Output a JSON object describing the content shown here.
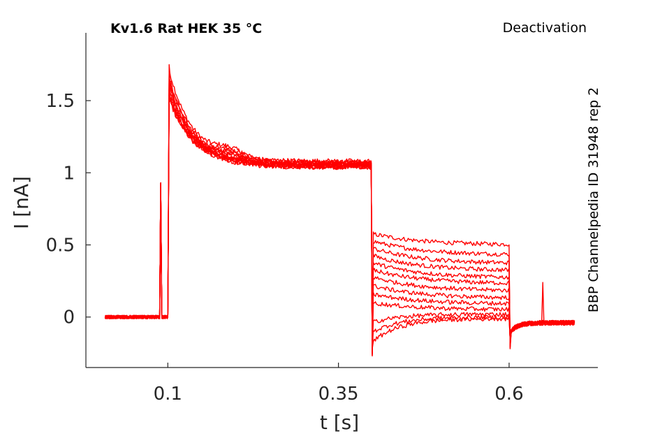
{
  "chart_data": {
    "type": "line",
    "title": "Kv1.6  Rat  HEK  35 °C",
    "protocol_label": "Deactivation",
    "side_label": "BBP Channelpedia ID 31948 rep 2",
    "xlabel": "t [s]",
    "ylabel": "I [nA]",
    "xlim": [
      -0.02,
      0.73
    ],
    "ylim": [
      -0.35,
      1.97
    ],
    "x_ticks": [
      0.1,
      0.35,
      0.6
    ],
    "x_tick_labels": [
      "0.1",
      "0.35",
      "0.6"
    ],
    "y_ticks": [
      0,
      0.5,
      1,
      1.5
    ],
    "y_tick_labels": [
      "0",
      "0.5",
      "1",
      "1.5"
    ],
    "grid": false,
    "series_color": "#ff0000",
    "artifact_spikes": [
      {
        "t": 0.089,
        "i": 0.93
      },
      {
        "t": 0.65,
        "i": 0.24
      }
    ],
    "protocol": {
      "t_start": 0.008,
      "t_activation": 0.1,
      "t_deactivation": 0.398,
      "t_return": 0.6,
      "t_end": 0.697,
      "baseline": 0.0,
      "peak": 1.72,
      "activation_plateau": 1.06,
      "tail_undershoot": -0.27,
      "final_baseline": -0.04
    },
    "series": [
      {
        "peak": 1.75,
        "plateau": 1.07,
        "tail_start": 0.58,
        "tail_end": 0.5
      },
      {
        "peak": 1.7,
        "plateau": 1.05,
        "tail_start": 0.53,
        "tail_end": 0.43
      },
      {
        "peak": 1.68,
        "plateau": 1.08,
        "tail_start": 0.48,
        "tail_end": 0.37
      },
      {
        "peak": 1.66,
        "plateau": 1.04,
        "tail_start": 0.43,
        "tail_end": 0.32
      },
      {
        "peak": 1.64,
        "plateau": 1.06,
        "tail_start": 0.38,
        "tail_end": 0.27
      },
      {
        "peak": 1.62,
        "plateau": 1.05,
        "tail_start": 0.33,
        "tail_end": 0.23
      },
      {
        "peak": 1.6,
        "plateau": 1.07,
        "tail_start": 0.28,
        "tail_end": 0.18
      },
      {
        "peak": 1.58,
        "plateau": 1.04,
        "tail_start": 0.22,
        "tail_end": 0.13
      },
      {
        "peak": 1.57,
        "plateau": 1.06,
        "tail_start": 0.16,
        "tail_end": 0.09
      },
      {
        "peak": 1.56,
        "plateau": 1.05,
        "tail_start": 0.1,
        "tail_end": 0.05
      },
      {
        "peak": 1.55,
        "plateau": 1.07,
        "tail_start": 0.04,
        "tail_end": 0.02
      },
      {
        "peak": 1.55,
        "plateau": 1.05,
        "tail_start": -0.03,
        "tail_end": 0.0
      },
      {
        "peak": 1.54,
        "plateau": 1.04,
        "tail_start": -0.1,
        "tail_end": -0.01
      }
    ]
  }
}
